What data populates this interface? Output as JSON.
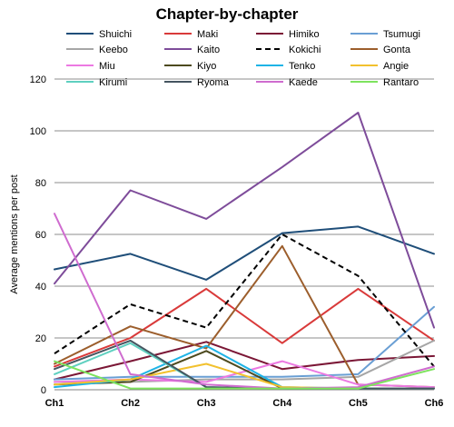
{
  "chart_data": {
    "type": "line",
    "title": "Chapter-by-chapter",
    "xlabel": "",
    "ylabel": "Average mentions per post",
    "categories": [
      "Ch1",
      "Ch2",
      "Ch3",
      "Ch4",
      "Ch5",
      "Ch6"
    ],
    "ylim": [
      0,
      120
    ],
    "yticks": [
      0,
      20,
      40,
      60,
      80,
      100,
      120
    ],
    "grid": true,
    "legend_placement": "top",
    "series": [
      {
        "name": "Shuichi",
        "color": "#1f4e79",
        "dashed": false,
        "values": [
          46.5,
          52.5,
          42.5,
          60.5,
          63,
          52.5
        ]
      },
      {
        "name": "Maki",
        "color": "#d93a3a",
        "dashed": false,
        "values": [
          9,
          20,
          39,
          18,
          39,
          19
        ]
      },
      {
        "name": "Himiko",
        "color": "#7b1736",
        "dashed": false,
        "values": [
          4,
          11,
          18.5,
          8,
          11.5,
          13
        ]
      },
      {
        "name": "Tsumugi",
        "color": "#6a9fd4",
        "dashed": false,
        "values": [
          4,
          5,
          5,
          5,
          6,
          32
        ]
      },
      {
        "name": "Keebo",
        "color": "#a6a6a6",
        "dashed": false,
        "values": [
          3,
          3,
          4,
          4,
          5,
          19
        ]
      },
      {
        "name": "Kaito",
        "color": "#7e4c9a",
        "dashed": false,
        "values": [
          41,
          77,
          66,
          86,
          107,
          24
        ]
      },
      {
        "name": "Kokichi",
        "color": "#000000",
        "dashed": true,
        "values": [
          14,
          33,
          24,
          60,
          44,
          9
        ]
      },
      {
        "name": "Gonta",
        "color": "#9c5e2c",
        "dashed": false,
        "values": [
          10,
          24.5,
          16,
          55.5,
          2,
          1
        ]
      },
      {
        "name": "Miu",
        "color": "#ec79e2",
        "dashed": false,
        "values": [
          3,
          4,
          3,
          11,
          2,
          1
        ]
      },
      {
        "name": "Kiyo",
        "color": "#4d4a1f",
        "dashed": false,
        "values": [
          2,
          3,
          15,
          0.5,
          0.5,
          0.5
        ]
      },
      {
        "name": "Tenko",
        "color": "#1fb4e6",
        "dashed": false,
        "values": [
          1,
          4,
          17,
          1,
          0.5,
          0.5
        ]
      },
      {
        "name": "Angie",
        "color": "#f2c12e",
        "dashed": false,
        "values": [
          2,
          4,
          10,
          1,
          0.5,
          0.5
        ]
      },
      {
        "name": "Kirumi",
        "color": "#5fd0c0",
        "dashed": false,
        "values": [
          6,
          18,
          1,
          0.5,
          0.5,
          0.5
        ]
      },
      {
        "name": "Ryoma",
        "color": "#455560",
        "dashed": false,
        "values": [
          8,
          19,
          1,
          0.5,
          0.5,
          0.5
        ]
      },
      {
        "name": "Kaede",
        "color": "#cf6ccf",
        "dashed": false,
        "values": [
          68,
          6,
          2,
          0.5,
          1,
          9
        ]
      },
      {
        "name": "Rantaro",
        "color": "#7ee35e",
        "dashed": false,
        "values": [
          11,
          0.5,
          0.5,
          0.5,
          0.5,
          8
        ]
      }
    ]
  }
}
